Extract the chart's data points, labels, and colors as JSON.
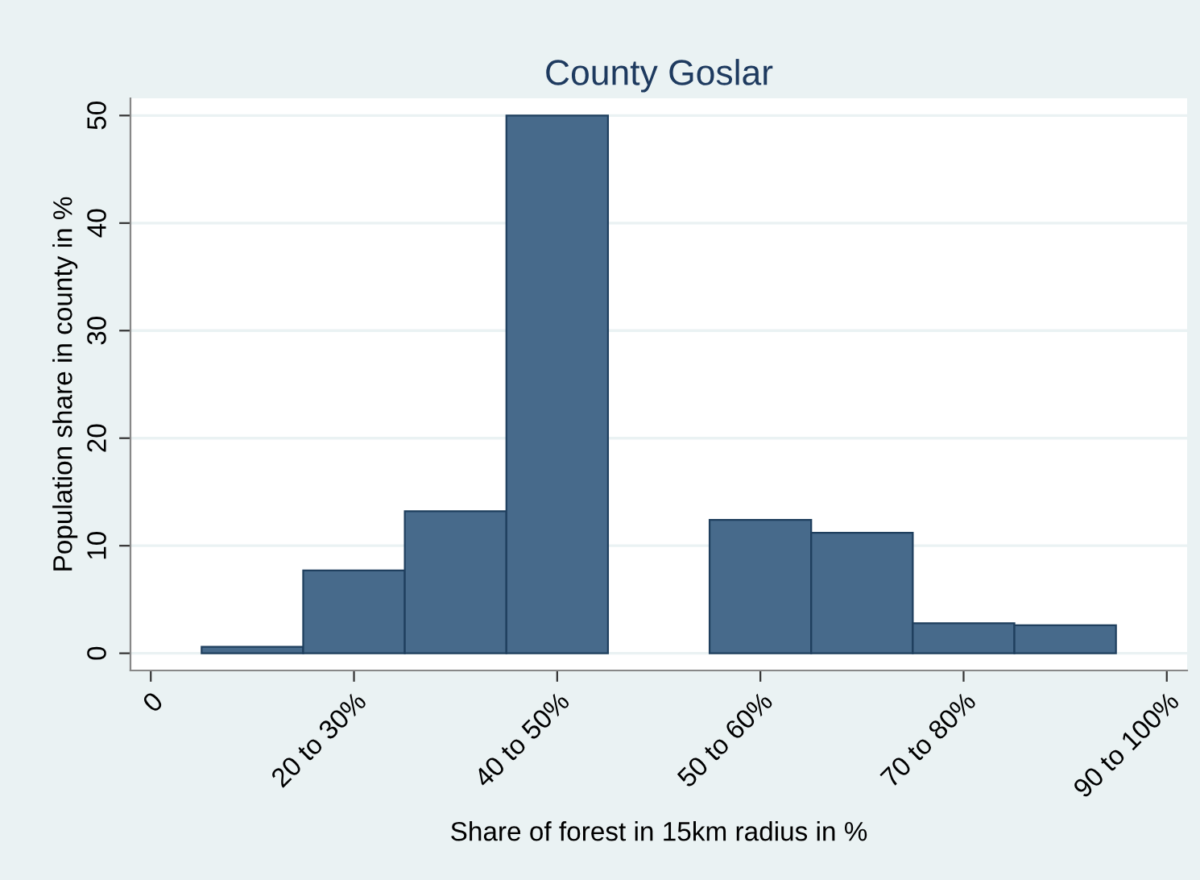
{
  "chart_data": {
    "type": "bar",
    "title": "County Goslar",
    "xlabel": "Share of forest in 15km radius in %",
    "ylabel": "Population share in county in %",
    "categories": [
      "0",
      null,
      "20 to 30%",
      null,
      "40 to 50%",
      null,
      "50 to 60%",
      null,
      "70 to 80%",
      null,
      "90 to 100%"
    ],
    "values": [
      null,
      0.6,
      7.7,
      13.2,
      50,
      null,
      12.4,
      11.2,
      2.8,
      2.6,
      null
    ],
    "color": "#476a8b",
    "ylim": [
      -1.6,
      51.6
    ],
    "yticks": [
      0,
      10,
      20,
      30,
      40,
      50
    ],
    "grid": "y"
  }
}
